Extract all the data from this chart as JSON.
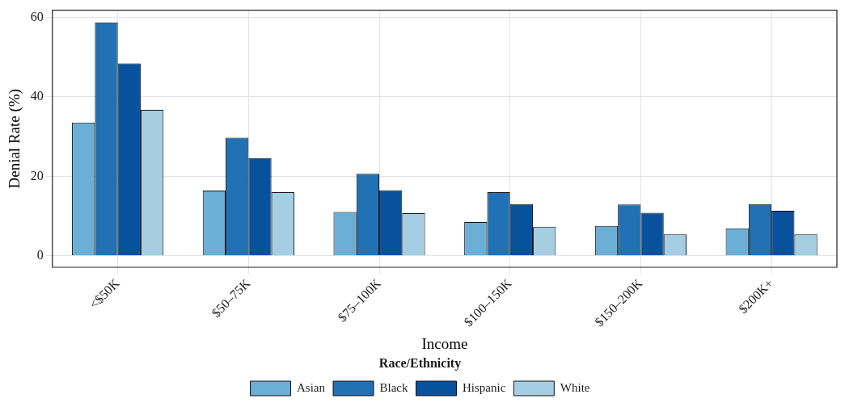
{
  "chart_data": {
    "type": "bar",
    "xlabel": "Income",
    "ylabel": "Denial Rate (%)",
    "legend_title": "Race/Ethnicity",
    "categories": [
      "<$50K",
      "$50–75K",
      "$75–100K",
      "$100–150K",
      "$150–200K",
      "$200K+"
    ],
    "series": [
      {
        "name": "Asian",
        "color": "#6baed6",
        "values": [
          33.5,
          16.4,
          11.0,
          8.5,
          7.5,
          6.9
        ]
      },
      {
        "name": "Black",
        "color": "#2171b5",
        "values": [
          58.7,
          29.7,
          20.6,
          16.0,
          12.9,
          13.0
        ]
      },
      {
        "name": "Hispanic",
        "color": "#08519c",
        "values": [
          48.4,
          24.6,
          16.5,
          13.0,
          10.8,
          11.3
        ]
      },
      {
        "name": "White",
        "color": "#a6cee3",
        "values": [
          36.7,
          16.0,
          10.7,
          7.3,
          5.4,
          5.4
        ]
      }
    ],
    "ylim": [
      -2.9,
      61.8
    ],
    "yticks": [
      0,
      20,
      40,
      60
    ],
    "grid": true,
    "legend": "bottom"
  }
}
